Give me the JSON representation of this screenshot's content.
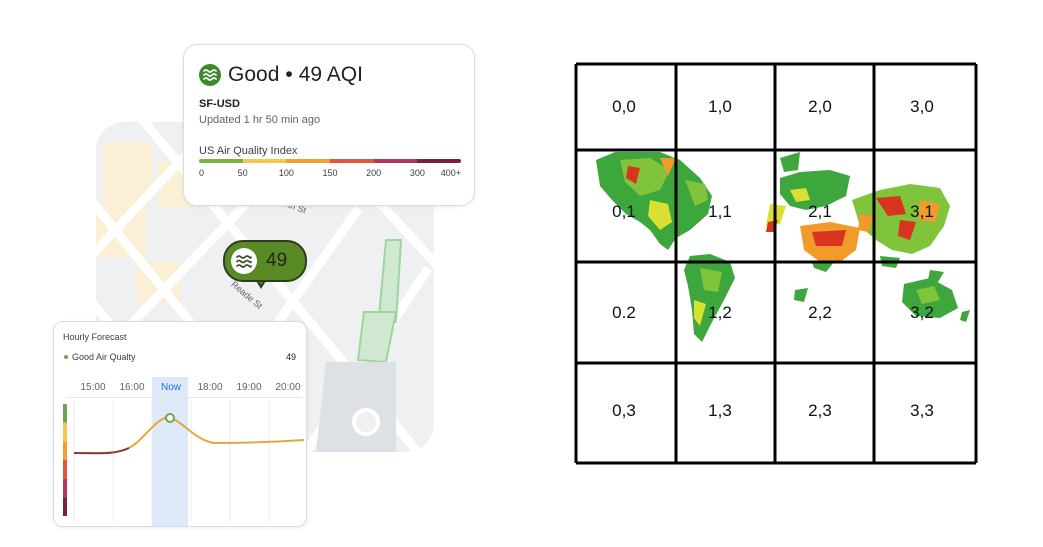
{
  "aqi_card": {
    "title": "Good",
    "separator": "•",
    "value": "49 AQI",
    "station": "SF-USD",
    "updated": "Updated 1 hr 50 min ago",
    "index_label": "US Air Quality Index",
    "scale_colors": [
      "#7cb342",
      "#f2c94c",
      "#f4a030",
      "#e1573a",
      "#b03a5b",
      "#7b1f3a"
    ],
    "ticks": [
      {
        "label": "0",
        "value": 0
      },
      {
        "label": "50",
        "value": 50
      },
      {
        "label": "100",
        "value": 100
      },
      {
        "label": "150",
        "value": 150
      },
      {
        "label": "200",
        "value": 200
      },
      {
        "label": "300",
        "value": 300
      },
      {
        "label": "400+",
        "value": 400
      }
    ]
  },
  "map": {
    "street_labels": [
      "rth St",
      "Reade St"
    ],
    "pin_value": "49",
    "pin_color": "#5a8a26"
  },
  "hourly_forecast": {
    "title": "Hourly Forecast",
    "status": "Good Air Qualty",
    "value": "49",
    "hours": [
      "15:00",
      "16:00",
      "Now",
      "18:00",
      "19:00",
      "20:00"
    ],
    "current_hour_index": 2,
    "level_colors": [
      "#6aa84f",
      "#f2c94c",
      "#f4a030",
      "#e1573a",
      "#b03a5b",
      "#7b1f3a"
    ],
    "line_color": "#e0a93a"
  },
  "grid": {
    "rows": 4,
    "cols": 4,
    "cells": [
      [
        "0,0",
        "1,0",
        "2,0",
        "3,0"
      ],
      [
        "0,1",
        "1,1",
        "2,1",
        "3,1"
      ],
      [
        "0.2",
        "1,2",
        "2,2",
        "3,2"
      ],
      [
        "0,3",
        "1,3",
        "2,3",
        "3,3"
      ]
    ],
    "map_colors": [
      "#3da63d",
      "#7fc43a",
      "#d8e032",
      "#f29a2a",
      "#d9341f"
    ]
  }
}
